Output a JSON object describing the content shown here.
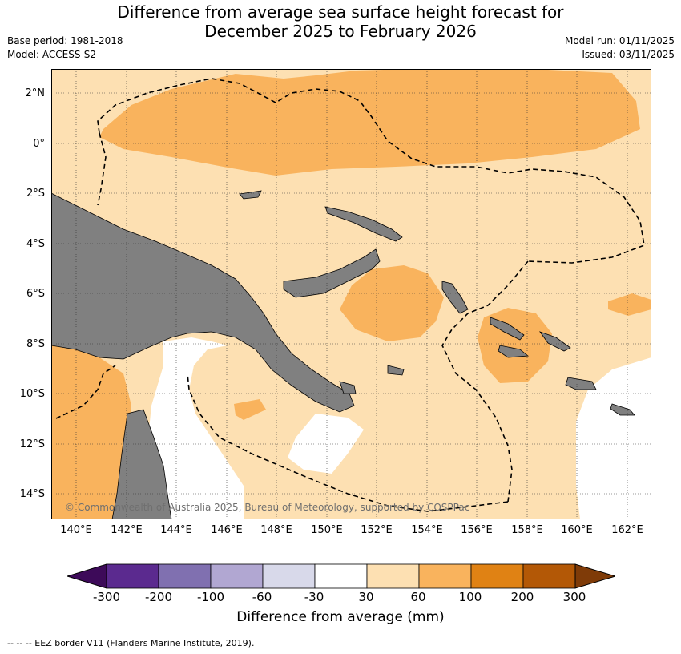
{
  "title_line1": "Difference from average sea surface height forecast for",
  "title_line2": "December 2025 to February 2026",
  "meta_left": {
    "base_period": "Base period: 1981-2018",
    "model": "Model: ACCESS-S2"
  },
  "meta_right": {
    "model_run": "Model run: 01/11/2025",
    "issued": "Issued: 03/11/2025"
  },
  "lat_labels": [
    "2°N",
    "0°",
    "2°S",
    "4°S",
    "6°S",
    "8°S",
    "10°S",
    "12°S",
    "14°S"
  ],
  "lon_labels": [
    "140°E",
    "142°E",
    "144°E",
    "146°E",
    "148°E",
    "150°E",
    "152°E",
    "154°E",
    "156°E",
    "158°E",
    "160°E",
    "162°E"
  ],
  "copyright": "© Commonwealth of Australia 2025, Bureau of Meteorology, supported by COSPPac",
  "colorbar": {
    "ticks": [
      "-300",
      "-200",
      "-100",
      "-60",
      "-30",
      "30",
      "60",
      "100",
      "200",
      "300"
    ],
    "colors": [
      "#3d0a59",
      "#5b2a8f",
      "#8070b0",
      "#b1a7d2",
      "#d8d9ea",
      "#ffffff",
      "#fde0b2",
      "#f9b35d",
      "#e08214",
      "#b35806",
      "#7f3b08"
    ],
    "label": "Difference from average (mm)"
  },
  "map_colors": {
    "land": "#808080",
    "light_orange": "#fde0b2",
    "orange": "#f9b35d",
    "white": "#ffffff"
  },
  "footnote": "-- -- -- EEZ border V11 (Flanders Marine Institute, 2019)."
}
